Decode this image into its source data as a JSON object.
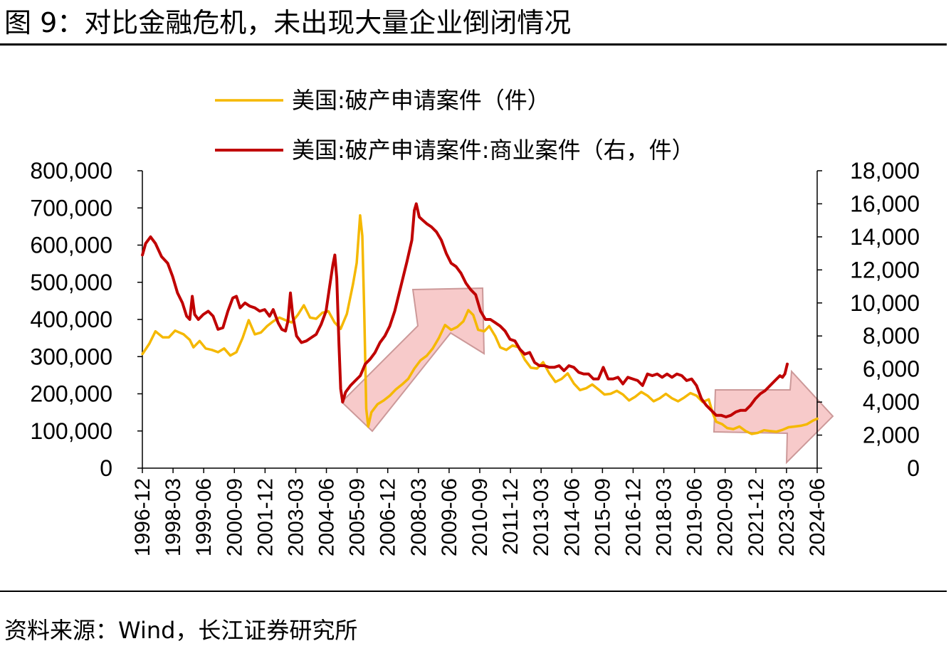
{
  "figure": {
    "title": "图 9：对比金融危机，未出现大量企业倒闭情况",
    "source": "资料来源：Wind，长江证券研究所"
  },
  "chart_data": {
    "type": "line",
    "legend_placement": "top-center",
    "grid": false,
    "x_tick_labels": [
      "1996-12",
      "1998-03",
      "1999-06",
      "2000-09",
      "2001-12",
      "2003-03",
      "2004-06",
      "2005-09",
      "2006-12",
      "2008-03",
      "2009-06",
      "2010-09",
      "2011-12",
      "2013-03",
      "2014-06",
      "2015-09",
      "2016-12",
      "2018-03",
      "2019-06",
      "2020-09",
      "2021-12",
      "2023-03",
      "2024-06"
    ],
    "xlim": [
      1996.917,
      2024.417
    ],
    "y_left": {
      "lim": [
        0,
        800000
      ],
      "ticks": [
        "800,000",
        "700,000",
        "600,000",
        "500,000",
        "400,000",
        "300,000",
        "200,000",
        "100,000",
        "0"
      ],
      "tick_values": [
        800000,
        700000,
        600000,
        500000,
        400000,
        300000,
        200000,
        100000,
        0
      ]
    },
    "y_right": {
      "lim": [
        0,
        18000
      ],
      "ticks": [
        "18,000",
        "16,000",
        "14,000",
        "12,000",
        "10,000",
        "8,000",
        "6,000",
        "4,000",
        "2,000",
        "0"
      ],
      "tick_values": [
        18000,
        16000,
        14000,
        12000,
        10000,
        8000,
        6000,
        4000,
        2000,
        0
      ]
    },
    "series": [
      {
        "name": "美国:破产申请案件（件）",
        "axis": "left",
        "color": "#f5b800",
        "points": [
          [
            1996.92,
            307000
          ],
          [
            1997.2,
            335000
          ],
          [
            1997.45,
            368000
          ],
          [
            1997.75,
            352000
          ],
          [
            1998.0,
            352000
          ],
          [
            1998.25,
            370000
          ],
          [
            1998.6,
            360000
          ],
          [
            1998.85,
            345000
          ],
          [
            1999.0,
            325000
          ],
          [
            1999.25,
            342000
          ],
          [
            1999.5,
            322000
          ],
          [
            1999.75,
            318000
          ],
          [
            2000.0,
            312000
          ],
          [
            2000.25,
            322000
          ],
          [
            2000.5,
            303000
          ],
          [
            2000.75,
            312000
          ],
          [
            2001.0,
            350000
          ],
          [
            2001.25,
            398000
          ],
          [
            2001.5,
            360000
          ],
          [
            2001.75,
            365000
          ],
          [
            2002.0,
            382000
          ],
          [
            2002.25,
            395000
          ],
          [
            2002.5,
            405000
          ],
          [
            2002.75,
            398000
          ],
          [
            2003.0,
            392000
          ],
          [
            2003.25,
            412000
          ],
          [
            2003.5,
            438000
          ],
          [
            2003.75,
            405000
          ],
          [
            2004.0,
            402000
          ],
          [
            2004.25,
            418000
          ],
          [
            2004.5,
            422000
          ],
          [
            2004.75,
            392000
          ],
          [
            2005.0,
            375000
          ],
          [
            2005.25,
            415000
          ],
          [
            2005.5,
            495000
          ],
          [
            2005.65,
            552000
          ],
          [
            2005.79,
            680000
          ],
          [
            2005.88,
            625000
          ],
          [
            2005.96,
            420000
          ],
          [
            2006.04,
            160000
          ],
          [
            2006.12,
            112000
          ],
          [
            2006.25,
            150000
          ],
          [
            2006.5,
            172000
          ],
          [
            2006.75,
            182000
          ],
          [
            2007.0,
            195000
          ],
          [
            2007.25,
            212000
          ],
          [
            2007.5,
            225000
          ],
          [
            2007.75,
            240000
          ],
          [
            2008.0,
            268000
          ],
          [
            2008.25,
            290000
          ],
          [
            2008.5,
            302000
          ],
          [
            2008.75,
            322000
          ],
          [
            2009.0,
            350000
          ],
          [
            2009.25,
            385000
          ],
          [
            2009.5,
            372000
          ],
          [
            2009.75,
            380000
          ],
          [
            2010.0,
            395000
          ],
          [
            2010.2,
            425000
          ],
          [
            2010.4,
            412000
          ],
          [
            2010.6,
            372000
          ],
          [
            2010.85,
            368000
          ],
          [
            2011.05,
            382000
          ],
          [
            2011.3,
            355000
          ],
          [
            2011.5,
            325000
          ],
          [
            2011.75,
            318000
          ],
          [
            2012.0,
            330000
          ],
          [
            2012.25,
            325000
          ],
          [
            2012.5,
            292000
          ],
          [
            2012.75,
            270000
          ],
          [
            2013.0,
            268000
          ],
          [
            2013.25,
            285000
          ],
          [
            2013.5,
            255000
          ],
          [
            2013.75,
            232000
          ],
          [
            2014.0,
            240000
          ],
          [
            2014.25,
            255000
          ],
          [
            2014.5,
            228000
          ],
          [
            2014.75,
            210000
          ],
          [
            2015.0,
            215000
          ],
          [
            2015.25,
            225000
          ],
          [
            2015.5,
            212000
          ],
          [
            2015.75,
            198000
          ],
          [
            2016.0,
            200000
          ],
          [
            2016.25,
            208000
          ],
          [
            2016.5,
            198000
          ],
          [
            2016.75,
            182000
          ],
          [
            2017.0,
            192000
          ],
          [
            2017.25,
            205000
          ],
          [
            2017.5,
            195000
          ],
          [
            2017.75,
            180000
          ],
          [
            2018.0,
            188000
          ],
          [
            2018.25,
            200000
          ],
          [
            2018.5,
            188000
          ],
          [
            2018.75,
            180000
          ],
          [
            2019.0,
            190000
          ],
          [
            2019.25,
            202000
          ],
          [
            2019.5,
            195000
          ],
          [
            2019.75,
            178000
          ],
          [
            2020.0,
            185000
          ],
          [
            2020.15,
            150000
          ],
          [
            2020.3,
            125000
          ],
          [
            2020.55,
            118000
          ],
          [
            2020.75,
            108000
          ],
          [
            2021.0,
            105000
          ],
          [
            2021.25,
            112000
          ],
          [
            2021.5,
            100000
          ],
          [
            2021.75,
            92000
          ],
          [
            2022.0,
            95000
          ],
          [
            2022.25,
            102000
          ],
          [
            2022.5,
            100000
          ],
          [
            2022.75,
            98000
          ],
          [
            2023.0,
            103000
          ],
          [
            2023.25,
            110000
          ],
          [
            2023.5,
            112000
          ],
          [
            2023.75,
            114000
          ],
          [
            2024.0,
            118000
          ],
          [
            2024.25,
            128000
          ],
          [
            2024.42,
            133000
          ]
        ]
      },
      {
        "name": "美国:破产申请案件:商业案件（右，件）",
        "axis": "right",
        "color": "#c00000",
        "points": [
          [
            1996.92,
            12900
          ],
          [
            1997.05,
            13600
          ],
          [
            1997.25,
            14000
          ],
          [
            1997.45,
            13600
          ],
          [
            1997.7,
            12800
          ],
          [
            1997.95,
            12400
          ],
          [
            1998.15,
            11600
          ],
          [
            1998.35,
            10600
          ],
          [
            1998.55,
            10000
          ],
          [
            1998.72,
            9200
          ],
          [
            1998.85,
            9000
          ],
          [
            1998.95,
            10400
          ],
          [
            1999.05,
            9300
          ],
          [
            1999.2,
            9000
          ],
          [
            1999.4,
            9300
          ],
          [
            1999.6,
            9500
          ],
          [
            1999.8,
            9200
          ],
          [
            2000.0,
            8400
          ],
          [
            2000.2,
            8500
          ],
          [
            2000.4,
            9500
          ],
          [
            2000.6,
            10300
          ],
          [
            2000.75,
            10400
          ],
          [
            2000.9,
            9700
          ],
          [
            2001.1,
            10000
          ],
          [
            2001.3,
            9800
          ],
          [
            2001.5,
            9700
          ],
          [
            2001.7,
            9500
          ],
          [
            2001.9,
            9600
          ],
          [
            2002.1,
            9200
          ],
          [
            2002.25,
            9600
          ],
          [
            2002.45,
            8800
          ],
          [
            2002.6,
            8400
          ],
          [
            2002.75,
            8300
          ],
          [
            2002.85,
            8900
          ],
          [
            2002.95,
            10600
          ],
          [
            2003.05,
            9200
          ],
          [
            2003.2,
            8000
          ],
          [
            2003.4,
            7600
          ],
          [
            2003.6,
            7700
          ],
          [
            2003.8,
            7900
          ],
          [
            2004.0,
            8100
          ],
          [
            2004.2,
            8700
          ],
          [
            2004.4,
            9500
          ],
          [
            2004.55,
            11000
          ],
          [
            2004.68,
            12300
          ],
          [
            2004.76,
            12900
          ],
          [
            2004.84,
            11500
          ],
          [
            2004.93,
            7500
          ],
          [
            2005.0,
            4800
          ],
          [
            2005.08,
            4000
          ],
          [
            2005.2,
            4600
          ],
          [
            2005.4,
            5000
          ],
          [
            2005.6,
            5300
          ],
          [
            2005.8,
            5600
          ],
          [
            2006.0,
            6300
          ],
          [
            2006.2,
            6600
          ],
          [
            2006.4,
            7000
          ],
          [
            2006.6,
            7600
          ],
          [
            2006.8,
            8000
          ],
          [
            2007.0,
            8600
          ],
          [
            2007.2,
            9500
          ],
          [
            2007.45,
            11000
          ],
          [
            2007.7,
            12500
          ],
          [
            2007.9,
            13800
          ],
          [
            2008.0,
            15600
          ],
          [
            2008.08,
            16000
          ],
          [
            2008.2,
            15200
          ],
          [
            2008.35,
            15000
          ],
          [
            2008.5,
            14800
          ],
          [
            2008.7,
            14600
          ],
          [
            2008.9,
            14300
          ],
          [
            2009.1,
            13800
          ],
          [
            2009.3,
            13000
          ],
          [
            2009.5,
            12400
          ],
          [
            2009.7,
            12200
          ],
          [
            2009.9,
            11800
          ],
          [
            2010.1,
            11200
          ],
          [
            2010.3,
            10800
          ],
          [
            2010.5,
            10500
          ],
          [
            2010.7,
            9500
          ],
          [
            2010.9,
            9000
          ],
          [
            2011.1,
            9000
          ],
          [
            2011.3,
            8800
          ],
          [
            2011.5,
            8600
          ],
          [
            2011.7,
            8300
          ],
          [
            2011.9,
            7800
          ],
          [
            2012.1,
            7700
          ],
          [
            2012.3,
            7200
          ],
          [
            2012.5,
            6900
          ],
          [
            2012.7,
            7000
          ],
          [
            2012.9,
            6400
          ],
          [
            2013.1,
            6200
          ],
          [
            2013.3,
            6200
          ],
          [
            2013.5,
            6100
          ],
          [
            2013.7,
            6100
          ],
          [
            2013.9,
            6200
          ],
          [
            2014.1,
            5900
          ],
          [
            2014.3,
            6200
          ],
          [
            2014.5,
            6100
          ],
          [
            2014.7,
            5800
          ],
          [
            2014.9,
            5700
          ],
          [
            2015.1,
            5700
          ],
          [
            2015.3,
            5400
          ],
          [
            2015.5,
            5400
          ],
          [
            2015.7,
            6100
          ],
          [
            2015.9,
            5400
          ],
          [
            2016.1,
            5400
          ],
          [
            2016.3,
            5500
          ],
          [
            2016.5,
            5100
          ],
          [
            2016.7,
            5500
          ],
          [
            2016.9,
            5400
          ],
          [
            2017.1,
            5300
          ],
          [
            2017.3,
            5000
          ],
          [
            2017.5,
            5700
          ],
          [
            2017.7,
            5600
          ],
          [
            2017.9,
            5700
          ],
          [
            2018.1,
            5500
          ],
          [
            2018.3,
            5700
          ],
          [
            2018.5,
            5500
          ],
          [
            2018.7,
            5700
          ],
          [
            2018.9,
            5600
          ],
          [
            2019.1,
            5300
          ],
          [
            2019.3,
            5400
          ],
          [
            2019.5,
            5000
          ],
          [
            2019.7,
            4200
          ],
          [
            2019.9,
            3800
          ],
          [
            2020.1,
            3500
          ],
          [
            2020.3,
            3200
          ],
          [
            2020.5,
            3200
          ],
          [
            2020.7,
            3100
          ],
          [
            2020.9,
            3200
          ],
          [
            2021.1,
            3400
          ],
          [
            2021.3,
            3500
          ],
          [
            2021.5,
            3500
          ],
          [
            2021.7,
            3800
          ],
          [
            2021.9,
            4200
          ],
          [
            2022.1,
            4500
          ],
          [
            2022.3,
            4700
          ],
          [
            2022.5,
            5000
          ],
          [
            2022.7,
            5300
          ],
          [
            2022.9,
            5600
          ],
          [
            2023.0,
            5500
          ],
          [
            2023.1,
            5700
          ],
          [
            2023.2,
            6300
          ]
        ]
      }
    ],
    "annotations": [
      {
        "type": "arrow",
        "description_free": true,
        "fill": "#f4b8b8",
        "stroke": "#c99"
      },
      {
        "type": "arrow",
        "description_free": true,
        "fill": "#f4b8b8",
        "stroke": "#c99"
      }
    ]
  }
}
